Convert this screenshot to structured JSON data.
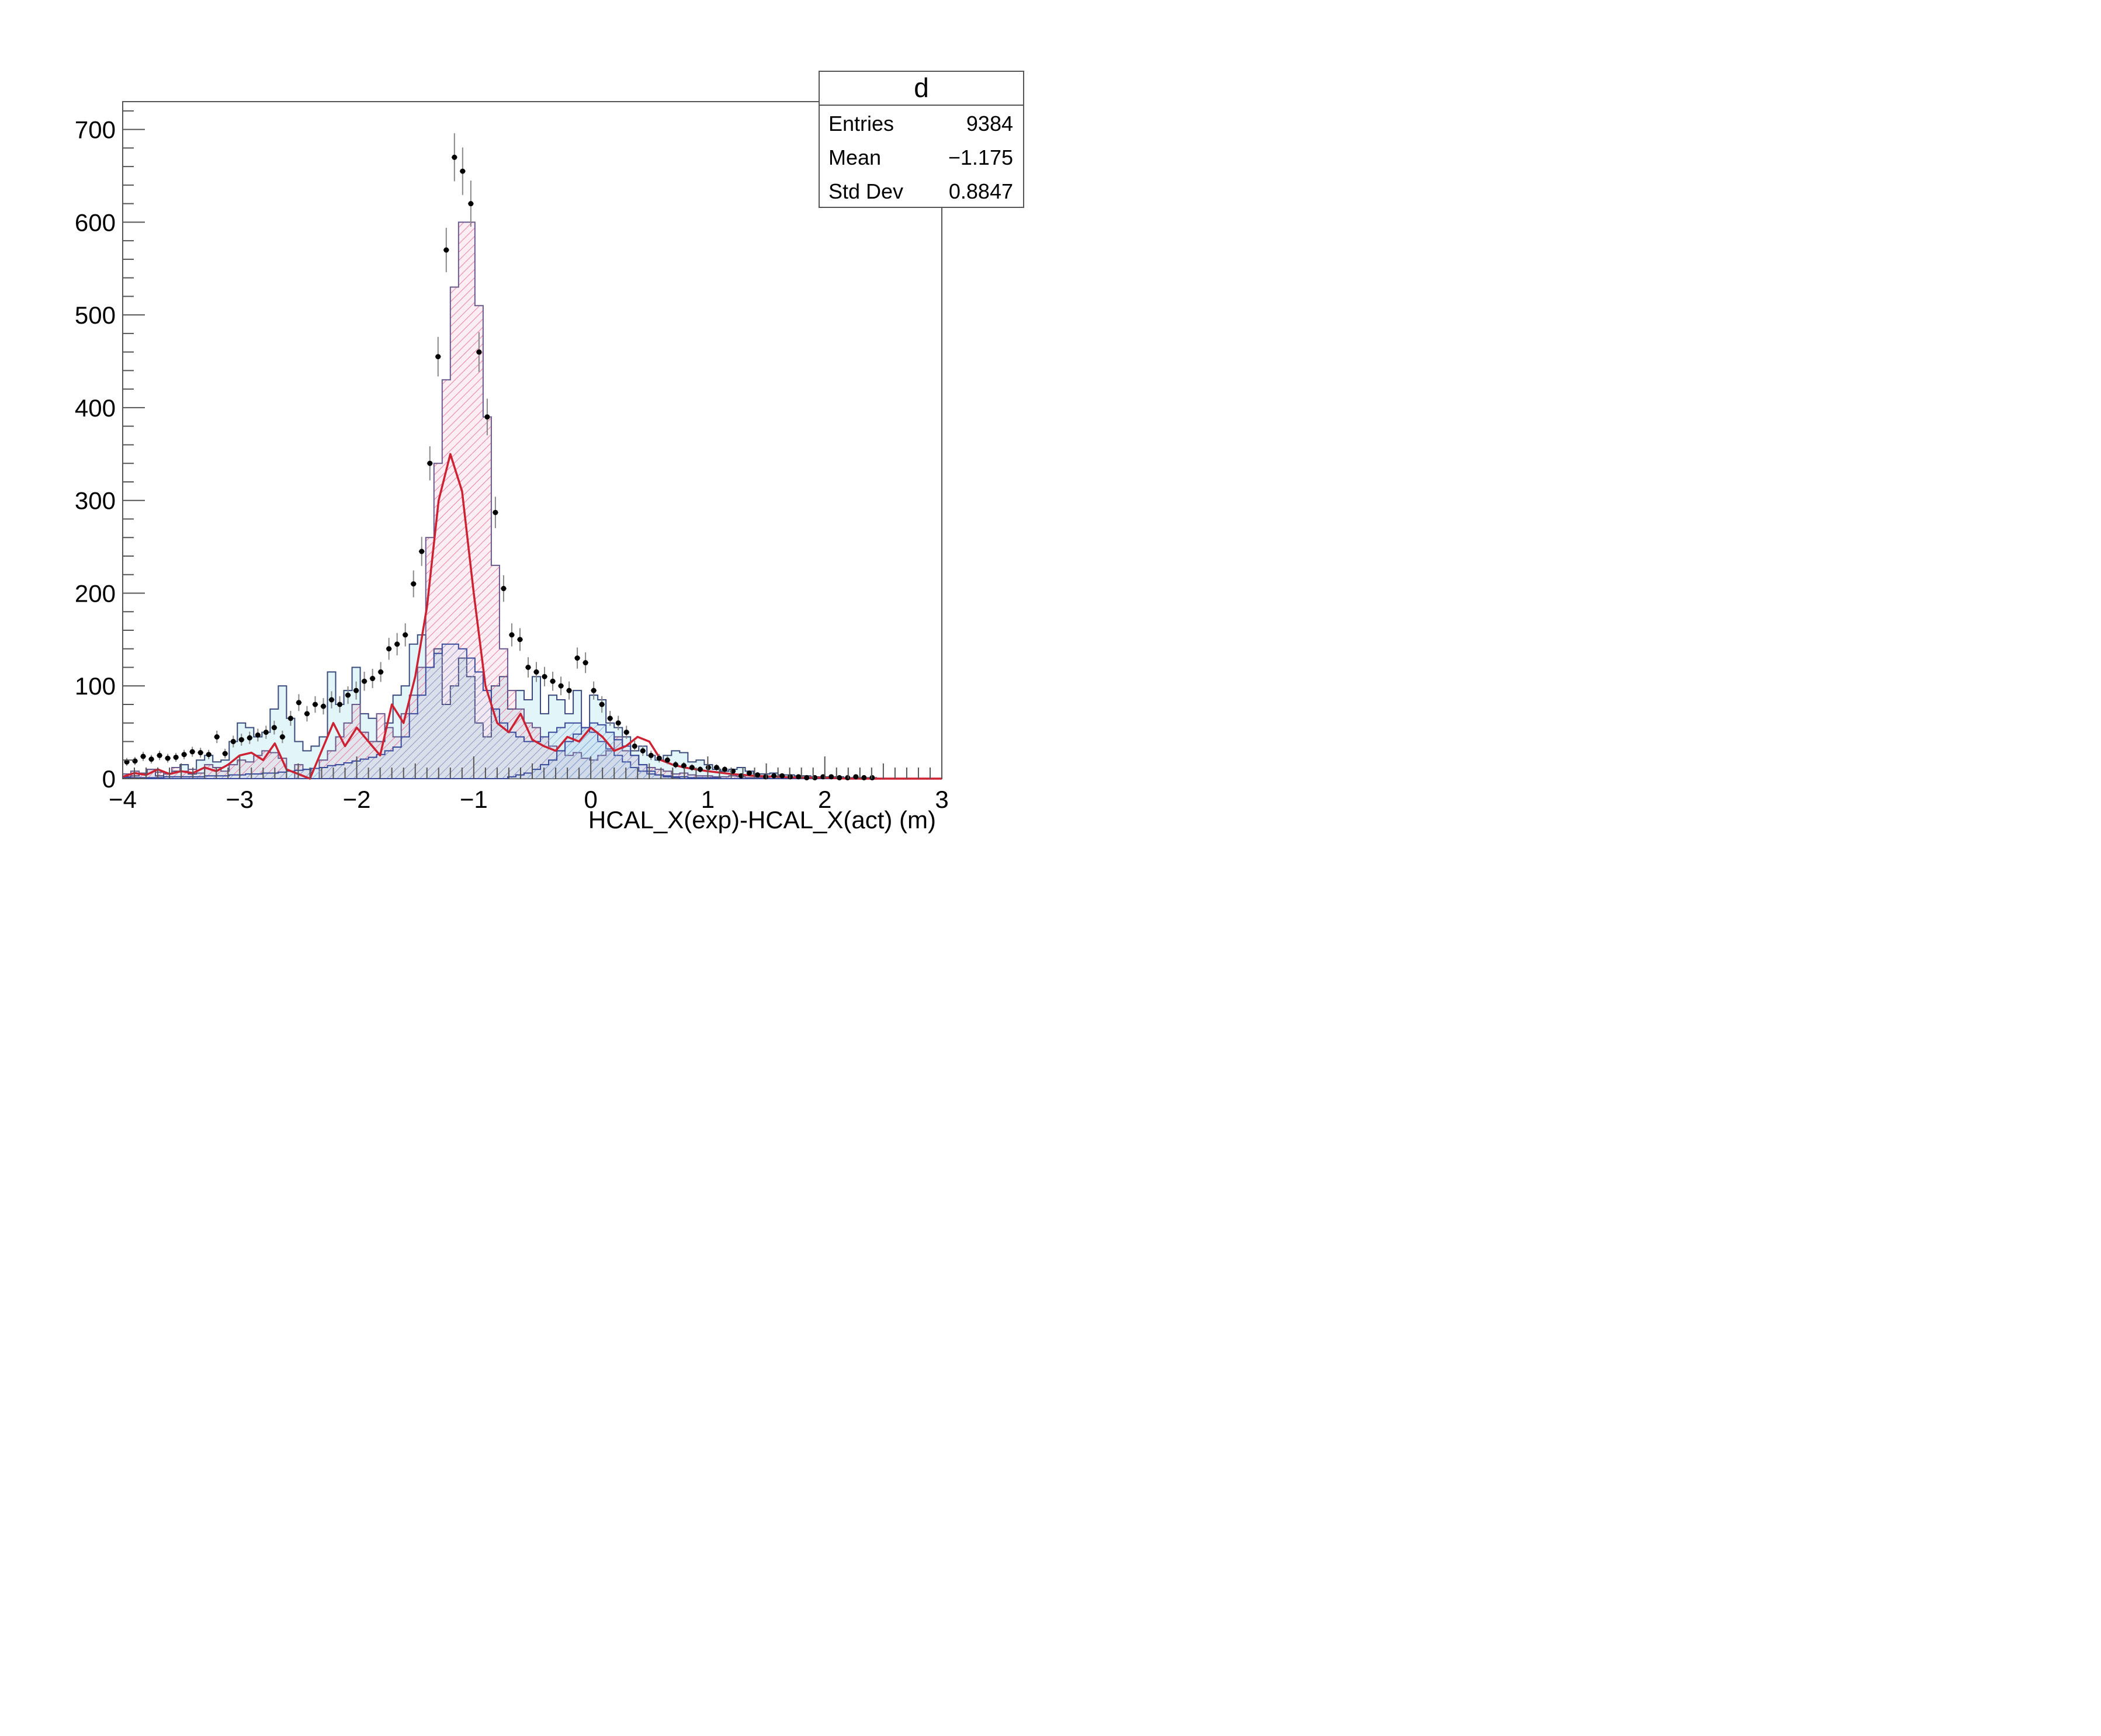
{
  "stats_box": {
    "title": "d",
    "rows": [
      {
        "label": "Entries",
        "value": "9384"
      },
      {
        "label": "Mean",
        "value": "−1.175"
      },
      {
        "label": "Std Dev",
        "value": "0.8847"
      }
    ]
  },
  "colors": {
    "frame": "#555555",
    "data_marker": "#000000",
    "data_error": "#888888",
    "fit_line": "#cc2233",
    "hist_peak_fill": "#e05a8a",
    "hist_peak_line": "#6a5a8c",
    "hist_bg_fill": "#bfe9f0",
    "hist_bg_line": "#3a4a7a",
    "hist_side_fill": "#7fa6d8",
    "hist_side_line": "#3a4a9a"
  },
  "chart_data": {
    "type": "histogram",
    "title": "",
    "xlabel": "HCAL_X(exp)-HCAL_X(act) (m)",
    "ylabel": "",
    "xlim": [
      -4,
      3
    ],
    "ylim": [
      0,
      730
    ],
    "x_ticks": [
      -4,
      -3,
      -2,
      -1,
      0,
      1,
      2,
      3
    ],
    "x_tick_labels": [
      "−4",
      "−3",
      "−2",
      "−1",
      "0",
      "1",
      "2",
      "3"
    ],
    "y_ticks": [
      0,
      100,
      200,
      300,
      400,
      500,
      600,
      700
    ],
    "y_tick_labels": [
      "0",
      "100",
      "200",
      "300",
      "400",
      "500",
      "600",
      "700"
    ],
    "grid": false,
    "bin_edges_start": -4,
    "bin_width": 0.07,
    "data_points": {
      "x": [
        -3.965,
        -3.895,
        -3.825,
        -3.755,
        -3.685,
        -3.615,
        -3.545,
        -3.475,
        -3.405,
        -3.335,
        -3.265,
        -3.195,
        -3.125,
        -3.055,
        -2.985,
        -2.915,
        -2.845,
        -2.775,
        -2.705,
        -2.635,
        -2.565,
        -2.495,
        -2.425,
        -2.355,
        -2.285,
        -2.215,
        -2.145,
        -2.075,
        -2.005,
        -1.935,
        -1.865,
        -1.795,
        -1.725,
        -1.655,
        -1.585,
        -1.515,
        -1.445,
        -1.375,
        -1.305,
        -1.235,
        -1.165,
        -1.095,
        -1.025,
        -0.955,
        -0.885,
        -0.815,
        -0.745,
        -0.675,
        -0.605,
        -0.535,
        -0.465,
        -0.395,
        -0.325,
        -0.255,
        -0.185,
        -0.115,
        -0.045,
        0.025,
        0.095,
        0.165,
        0.235,
        0.305,
        0.375,
        0.445,
        0.515,
        0.585,
        0.655,
        0.725,
        0.795,
        0.865,
        0.935,
        1.005,
        1.075,
        1.145,
        1.215,
        1.285,
        1.355,
        1.425,
        1.495,
        1.565,
        1.635,
        1.705,
        1.775,
        1.845,
        1.915,
        1.985,
        2.055,
        2.125,
        2.195,
        2.265,
        2.335,
        2.405,
        2.475,
        2.545,
        2.615,
        2.685,
        2.755,
        2.825,
        2.895,
        2.965
      ],
      "y": [
        18,
        19,
        24,
        21,
        25,
        22,
        23,
        26,
        29,
        28,
        26,
        45,
        27,
        40,
        42,
        44,
        47,
        50,
        55,
        45,
        65,
        82,
        70,
        80,
        78,
        85,
        80,
        90,
        95,
        105,
        108,
        115,
        140,
        145,
        155,
        210,
        245,
        340,
        455,
        570,
        670,
        655,
        620,
        460,
        390,
        287,
        205,
        155,
        150,
        120,
        115,
        110,
        105,
        100,
        95,
        130,
        125,
        95,
        80,
        65,
        60,
        50,
        35,
        30,
        25,
        22,
        20,
        15,
        14,
        12,
        10,
        12,
        12,
        10,
        8,
        3,
        6,
        4,
        2,
        3,
        3,
        2,
        2,
        1,
        1,
        2,
        2,
        1,
        1,
        2,
        1,
        1,
        0,
        0,
        0,
        0,
        0,
        0,
        0,
        0
      ]
    },
    "series": [
      {
        "values": [
          5,
          8,
          6,
          10,
          7,
          5,
          12,
          8,
          10,
          6,
          15,
          12,
          8,
          15,
          20,
          18,
          25,
          30,
          28,
          22,
          0,
          15,
          10,
          0,
          20,
          30,
          45,
          60,
          80,
          50,
          40,
          70,
          55,
          45,
          70,
          90,
          120,
          260,
          340,
          430,
          530,
          600,
          600,
          510,
          390,
          230,
          140,
          95,
          75,
          60,
          55,
          45,
          35,
          30,
          25,
          28,
          22,
          20,
          25,
          30,
          45,
          30,
          25,
          15,
          12,
          10,
          8,
          5,
          6,
          4,
          3,
          3,
          2,
          2,
          3,
          2,
          1,
          1,
          1,
          0,
          0,
          1,
          1,
          0,
          0,
          1,
          0,
          0,
          0,
          0,
          0,
          0,
          0,
          0,
          0,
          0,
          0,
          0,
          0,
          0
        ]
      },
      {
        "values": [
          2,
          3,
          5,
          10,
          3,
          5,
          8,
          15,
          5,
          20,
          25,
          18,
          20,
          40,
          60,
          55,
          45,
          50,
          75,
          100,
          65,
          40,
          30,
          35,
          45,
          115,
          80,
          95,
          120,
          70,
          65,
          40,
          60,
          90,
          100,
          145,
          155,
          120,
          140,
          80,
          100,
          130,
          110,
          60,
          45,
          100,
          110,
          75,
          95,
          85,
          110,
          70,
          90,
          85,
          70,
          95,
          55,
          90,
          85,
          60,
          55,
          45,
          30,
          35,
          25,
          20,
          25,
          30,
          28,
          18,
          20,
          15,
          10,
          8,
          10,
          12,
          8,
          5,
          5,
          6,
          4,
          4,
          3,
          3,
          2,
          2,
          2,
          2,
          1,
          1,
          1,
          1,
          0,
          0,
          0,
          0,
          0,
          0,
          0,
          0
        ]
      },
      {
        "values": [
          1,
          1,
          1,
          1,
          1,
          2,
          2,
          2,
          2,
          2,
          3,
          3,
          3,
          4,
          4,
          5,
          5,
          6,
          6,
          7,
          8,
          9,
          10,
          11,
          12,
          14,
          15,
          17,
          19,
          21,
          23,
          26,
          30,
          34,
          45,
          70,
          90,
          120,
          135,
          145,
          145,
          140,
          130,
          115,
          95,
          75,
          60,
          50,
          45,
          40,
          40,
          45,
          50,
          55,
          60,
          60,
          55,
          50,
          40,
          32,
          25,
          18,
          12,
          8,
          5,
          4,
          3,
          2,
          2,
          1,
          1,
          1,
          1,
          0,
          0,
          0,
          0,
          0,
          0,
          0,
          0,
          0,
          0,
          0,
          0,
          0,
          0,
          0,
          0,
          0,
          0,
          0,
          0,
          0,
          0,
          0,
          0,
          0,
          0,
          0
        ]
      },
      {
        "values": [
          0,
          0,
          0,
          0,
          0,
          0,
          0,
          0,
          0,
          0,
          0,
          0,
          0,
          0,
          0,
          0,
          0,
          0,
          0,
          0,
          0,
          0,
          0,
          0,
          0,
          0,
          0,
          0,
          0,
          0,
          0,
          0,
          0,
          0,
          0,
          0,
          0,
          0,
          0,
          0,
          0,
          0,
          0,
          0,
          0,
          0,
          0,
          2,
          4,
          6,
          10,
          15,
          20,
          30,
          40,
          48,
          55,
          60,
          58,
          50,
          42,
          35,
          25,
          15,
          8,
          4,
          2,
          1,
          0,
          0,
          0,
          0,
          0,
          0,
          0,
          0,
          0,
          0,
          0,
          0,
          0,
          0,
          0,
          0,
          0,
          0,
          0,
          0,
          0,
          0,
          0,
          0,
          0,
          0,
          0,
          0,
          0,
          0,
          0,
          0
        ]
      }
    ],
    "fit_curve": {
      "x": [
        -4.0,
        -3.9,
        -3.8,
        -3.7,
        -3.6,
        -3.5,
        -3.4,
        -3.3,
        -3.2,
        -3.1,
        -3.0,
        -2.9,
        -2.8,
        -2.7,
        -2.6,
        -2.5,
        -2.4,
        -2.3,
        -2.2,
        -2.1,
        -2.0,
        -1.9,
        -1.8,
        -1.7,
        -1.6,
        -1.5,
        -1.4,
        -1.3,
        -1.2,
        -1.1,
        -1.0,
        -0.9,
        -0.8,
        -0.7,
        -0.6,
        -0.5,
        -0.4,
        -0.3,
        -0.2,
        -0.1,
        0.0,
        0.1,
        0.2,
        0.3,
        0.4,
        0.5,
        0.6,
        0.7,
        0.8,
        0.9,
        1.0,
        1.2,
        1.4,
        1.6,
        1.8,
        2.0,
        2.2,
        2.4,
        2.6,
        2.8,
        3.0
      ],
      "y": [
        2,
        6,
        4,
        10,
        5,
        8,
        6,
        12,
        8,
        15,
        25,
        28,
        20,
        38,
        10,
        5,
        0,
        30,
        60,
        35,
        55,
        40,
        25,
        80,
        60,
        110,
        185,
        300,
        350,
        310,
        200,
        100,
        60,
        50,
        70,
        42,
        35,
        30,
        45,
        40,
        55,
        45,
        30,
        35,
        45,
        40,
        20,
        15,
        12,
        10,
        8,
        5,
        3,
        2,
        1,
        1,
        0,
        0,
        0,
        0,
        0
      ]
    }
  }
}
